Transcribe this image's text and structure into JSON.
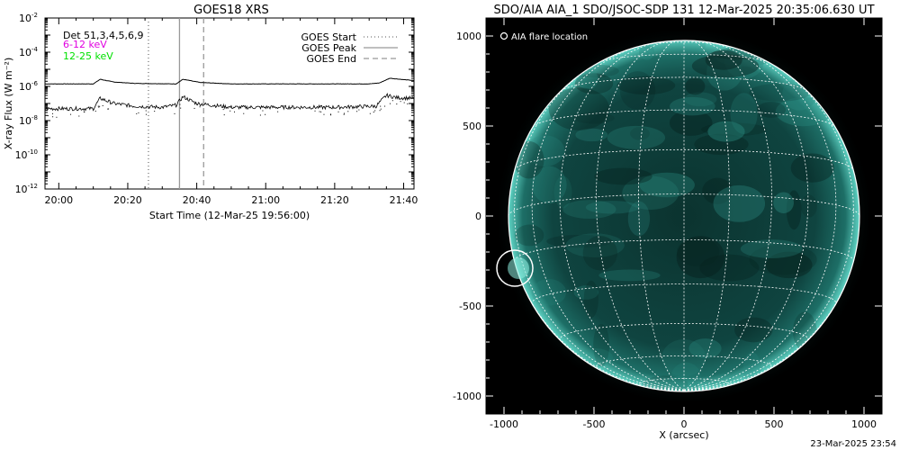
{
  "chart_data": [
    {
      "type": "line",
      "title": "GOES18 XRS",
      "xlabel": "Start Time (12-Mar-25 19:56:00)",
      "ylabel": "X-ray Flux (W m⁻²)",
      "y_scale": "log",
      "ylim": [
        1e-12,
        0.01
      ],
      "xlim": [
        "19:56",
        "21:43"
      ],
      "x_ticks": [
        "20:00",
        "20:20",
        "20:40",
        "21:00",
        "21:20",
        "21:40"
      ],
      "y_ticks": [
        {
          "base": "10",
          "exp": "-12",
          "value": 1e-12
        },
        {
          "base": "10",
          "exp": "-10",
          "value": 1e-10
        },
        {
          "base": "10",
          "exp": "-8",
          "value": 1e-08
        },
        {
          "base": "10",
          "exp": "-6",
          "value": 1e-06
        },
        {
          "base": "10",
          "exp": "-4",
          "value": 0.0001
        },
        {
          "base": "10",
          "exp": "-2",
          "value": 0.01
        }
      ],
      "legend_top_left": {
        "det_text": "Det 51,3,4,5,6,9",
        "band1": "6-12 keV",
        "band2": "12-25 keV",
        "band1_color": "#e000e0",
        "band2_color": "#00e000"
      },
      "legend_top_right": [
        {
          "label": "GOES Start",
          "style": "dotted"
        },
        {
          "label": "GOES Peak",
          "style": "solid"
        },
        {
          "label": "GOES End",
          "style": "dashed"
        }
      ],
      "vertical_markers": [
        {
          "name": "GOES Start",
          "time": "20:26"
        },
        {
          "name": "GOES Peak",
          "time": "20:35"
        },
        {
          "name": "GOES End",
          "time": "20:42"
        }
      ],
      "series": [
        {
          "band": "long",
          "points": [
            [
              "19:56",
              1.4e-06
            ],
            [
              "20:10",
              1.4e-06
            ],
            [
              "20:12",
              2.6e-06
            ],
            [
              "20:16",
              1.8e-06
            ],
            [
              "20:22",
              1.5e-06
            ],
            [
              "20:34",
              1.4e-06
            ],
            [
              "20:36",
              2.6e-06
            ],
            [
              "20:41",
              1.7e-06
            ],
            [
              "20:50",
              1.4e-06
            ],
            [
              "21:30",
              1.4e-06
            ],
            [
              "21:33",
              1.6e-06
            ],
            [
              "21:36",
              3e-06
            ],
            [
              "21:40",
              2.5e-06
            ],
            [
              "21:43",
              2.2e-06
            ]
          ]
        },
        {
          "band": "short",
          "points": [
            [
              "19:56",
              5e-08
            ],
            [
              "20:10",
              5e-08
            ],
            [
              "20:12",
              2e-07
            ],
            [
              "20:16",
              1e-07
            ],
            [
              "20:22",
              7e-08
            ],
            [
              "20:30",
              6e-08
            ],
            [
              "20:34",
              8e-08
            ],
            [
              "20:36",
              2.5e-07
            ],
            [
              "20:40",
              1e-07
            ],
            [
              "20:50",
              6e-08
            ],
            [
              "21:20",
              6e-08
            ],
            [
              "21:32",
              7e-08
            ],
            [
              "21:35",
              3e-07
            ],
            [
              "21:38",
              2.2e-07
            ],
            [
              "21:43",
              2e-07
            ]
          ]
        }
      ]
    },
    {
      "type": "scatter",
      "title": "SDO/AIA AIA_1 SDO/JSOC-SDP 131 12-Mar-2025 20:35:06.630 UT",
      "xlabel": "X (arcsec)",
      "ylabel": "",
      "xlim": [
        -1100,
        1100
      ],
      "ylim": [
        -1100,
        1100
      ],
      "x_ticks": [
        "-1000",
        "-500",
        "0",
        "500",
        "1000"
      ],
      "y_ticks": [
        "1000",
        "500",
        "0",
        "-500",
        "-1000"
      ],
      "legend": "AIA flare location",
      "solar_radius_arcsec": 975,
      "flare_location": [
        -940,
        -290
      ],
      "grid_spacing_deg": 15,
      "disk_color": "#0e3f3b",
      "limb_color": "#3fb4a6"
    }
  ],
  "timestamp": "23-Mar-2025 23:54"
}
